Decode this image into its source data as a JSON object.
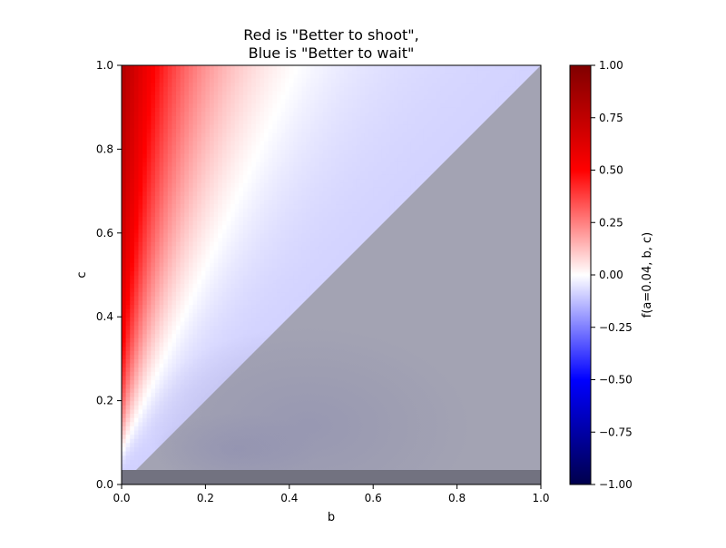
{
  "chart_data": {
    "type": "heatmap",
    "title": [
      "Red is \"Better to shoot\",",
      "Blue is \"Better to wait\""
    ],
    "xlabel": "b",
    "ylabel": "c",
    "xlim": [
      0,
      1
    ],
    "ylim": [
      0,
      1
    ],
    "xticks": [
      "0.0",
      "0.2",
      "0.4",
      "0.6",
      "0.8",
      "1.0"
    ],
    "yticks": [
      "0.0",
      "0.2",
      "0.4",
      "0.6",
      "0.8",
      "1.0"
    ],
    "grid": false,
    "colormap": "seismic",
    "vmin": -1,
    "vmax": 1,
    "colorbar": {
      "label": "f(a=0.04, b, c)",
      "ticks": [
        "1.00",
        "0.75",
        "0.50",
        "0.25",
        "0.00",
        "−0.25",
        "−0.50",
        "−0.75",
        "−1.00"
      ],
      "tick_values": [
        1,
        0.75,
        0.5,
        0.25,
        0,
        -0.25,
        -0.5,
        -0.75,
        -1
      ]
    },
    "masked_regions": [
      {
        "name": "c < b",
        "description": "grey overlay below diagonal",
        "color": "#a3a3b3"
      },
      {
        "name": "c < a",
        "description": "dark band for c below 0.04",
        "color": "#727280"
      }
    ],
    "a": 0.04
  }
}
